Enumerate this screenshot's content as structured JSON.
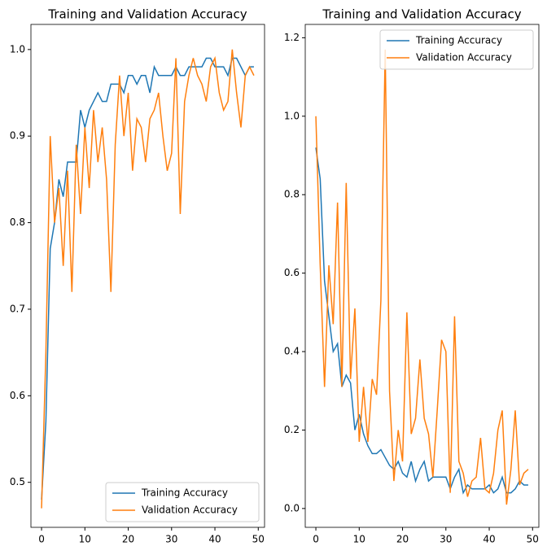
{
  "chart_data": [
    {
      "type": "line",
      "title": "Training and Validation Accuracy",
      "x": [
        0,
        1,
        2,
        3,
        4,
        5,
        6,
        7,
        8,
        9,
        10,
        11,
        12,
        13,
        14,
        15,
        16,
        17,
        18,
        19,
        20,
        21,
        22,
        23,
        24,
        25,
        26,
        27,
        28,
        29,
        30,
        31,
        32,
        33,
        34,
        35,
        36,
        37,
        38,
        39,
        40,
        41,
        42,
        43,
        44,
        45,
        46,
        47,
        48,
        49
      ],
      "series": [
        {
          "name": "Training Accuracy",
          "color": "#1f77b4",
          "values": [
            0.48,
            0.57,
            0.77,
            0.8,
            0.85,
            0.83,
            0.87,
            0.87,
            0.87,
            0.93,
            0.91,
            0.93,
            0.94,
            0.95,
            0.94,
            0.94,
            0.96,
            0.96,
            0.96,
            0.95,
            0.97,
            0.97,
            0.96,
            0.97,
            0.97,
            0.95,
            0.98,
            0.97,
            0.97,
            0.97,
            0.97,
            0.98,
            0.97,
            0.97,
            0.98,
            0.98,
            0.98,
            0.98,
            0.99,
            0.99,
            0.98,
            0.98,
            0.98,
            0.97,
            0.99,
            0.99,
            0.98,
            0.97,
            0.98,
            0.98
          ]
        },
        {
          "name": "Validation Accuracy",
          "color": "#ff7f0e",
          "values": [
            0.47,
            0.65,
            0.9,
            0.8,
            0.84,
            0.75,
            0.86,
            0.72,
            0.89,
            0.81,
            0.91,
            0.84,
            0.93,
            0.87,
            0.91,
            0.85,
            0.72,
            0.89,
            0.97,
            0.9,
            0.95,
            0.86,
            0.92,
            0.91,
            0.87,
            0.92,
            0.93,
            0.95,
            0.9,
            0.86,
            0.88,
            0.99,
            0.81,
            0.94,
            0.97,
            0.99,
            0.97,
            0.96,
            0.94,
            0.98,
            0.99,
            0.95,
            0.93,
            0.94,
            1.0,
            0.95,
            0.91,
            0.97,
            0.98,
            0.97
          ]
        }
      ],
      "xlim": [
        -2.45,
        51.45
      ],
      "xticks": [
        0,
        10,
        20,
        30,
        40,
        50
      ],
      "ylim": [
        0.448,
        1.029
      ],
      "yticks": [
        0.5,
        0.6,
        0.7,
        0.8,
        0.9,
        {
          "value": 1.0,
          "label": "1.0"
        }
      ],
      "legend": "lower right"
    },
    {
      "type": "line",
      "title": "Training and Validation Accuracy",
      "x": [
        0,
        1,
        2,
        3,
        4,
        5,
        6,
        7,
        8,
        9,
        10,
        11,
        12,
        13,
        14,
        15,
        16,
        17,
        18,
        19,
        20,
        21,
        22,
        23,
        24,
        25,
        26,
        27,
        28,
        29,
        30,
        31,
        32,
        33,
        34,
        35,
        36,
        37,
        38,
        39,
        40,
        41,
        42,
        43,
        44,
        45,
        46,
        47,
        48,
        49
      ],
      "series": [
        {
          "name": "Training Accuracy",
          "color": "#1f77b4",
          "values": [
            0.92,
            0.84,
            0.58,
            0.49,
            0.4,
            0.42,
            0.31,
            0.34,
            0.32,
            0.2,
            0.24,
            0.19,
            0.16,
            0.14,
            0.14,
            0.15,
            0.13,
            0.11,
            0.1,
            0.12,
            0.09,
            0.08,
            0.12,
            0.07,
            0.1,
            0.12,
            0.07,
            0.08,
            0.08,
            0.08,
            0.08,
            0.05,
            0.08,
            0.1,
            0.04,
            0.06,
            0.05,
            0.05,
            0.05,
            0.05,
            0.06,
            0.04,
            0.05,
            0.08,
            0.04,
            0.04,
            0.05,
            0.07,
            0.06,
            0.06
          ]
        },
        {
          "name": "Validation Accuracy",
          "color": "#ff7f0e",
          "values": [
            1.0,
            0.62,
            0.31,
            0.62,
            0.47,
            0.78,
            0.31,
            0.83,
            0.33,
            0.51,
            0.17,
            0.31,
            0.17,
            0.33,
            0.29,
            0.53,
            1.17,
            0.3,
            0.07,
            0.2,
            0.12,
            0.5,
            0.19,
            0.23,
            0.38,
            0.23,
            0.19,
            0.08,
            0.25,
            0.43,
            0.4,
            0.04,
            0.49,
            0.12,
            0.09,
            0.03,
            0.07,
            0.08,
            0.18,
            0.05,
            0.04,
            0.09,
            0.2,
            0.25,
            0.01,
            0.1,
            0.25,
            0.06,
            0.09,
            0.1
          ]
        }
      ],
      "xlim": [
        -2.45,
        51.45
      ],
      "xticks": [
        0,
        10,
        20,
        30,
        40,
        50
      ],
      "ylim": [
        -0.048,
        1.234
      ],
      "yticks": [
        {
          "value": 0.0,
          "label": "0.0"
        },
        0.2,
        0.4,
        0.6,
        0.8,
        {
          "value": 1.0,
          "label": "1.0"
        },
        1.2
      ],
      "legend": "upper right"
    }
  ]
}
